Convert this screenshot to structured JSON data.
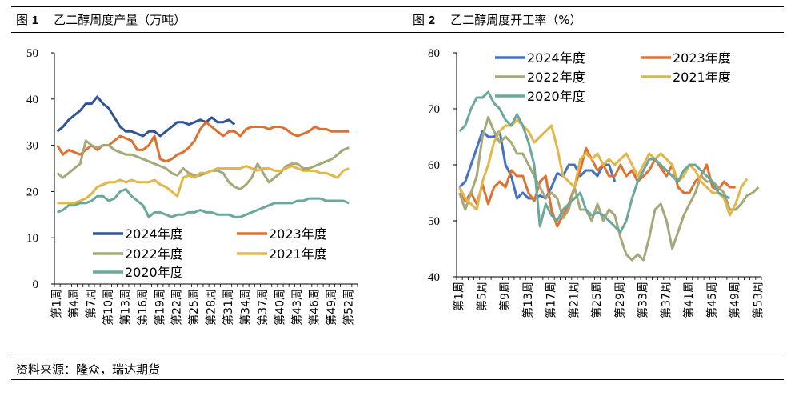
{
  "charts_header": {
    "fig1_label": "图",
    "fig1_num": "1",
    "fig1_title": "乙二醇周度产量（万吨）",
    "fig2_label": "图",
    "fig2_num": "2",
    "fig2_title": "乙二醇周度开工率（%）"
  },
  "source": "资料来源：隆众，瑞达期货",
  "colors": {
    "2024年度": "#2F5597",
    "2023年度": "#E07030",
    "2022年度": "#A5A878",
    "2021年度": "#E2B64A",
    "2020年度": "#6BA89C",
    "2024年度_right": "#4472C4"
  },
  "chart_data": [
    {
      "type": "line",
      "title": "乙二醇周度产量（万吨）",
      "ylim": [
        0,
        50
      ],
      "yticks": [
        0,
        10,
        20,
        30,
        40,
        50
      ],
      "xticks": [
        "第1周",
        "第4周",
        "第7周",
        "第10周",
        "第13周",
        "第16周",
        "第19周",
        "第22周",
        "第25周",
        "第28周",
        "第31周",
        "第34周",
        "第37周",
        "第40周",
        "第43周",
        "第46周",
        "第49周",
        "第52周"
      ],
      "legend": [
        "2024年度",
        "2023年度",
        "2022年度",
        "2021年度",
        "2020年度"
      ],
      "series": [
        {
          "name": "2024年度",
          "values": [
            33,
            34,
            35.5,
            36.5,
            37.5,
            39,
            39,
            40.5,
            39,
            38,
            36,
            34,
            33,
            33,
            32.5,
            32,
            33,
            33,
            32,
            33,
            34,
            35,
            35,
            34.5,
            35,
            35.5,
            35,
            36,
            35,
            35,
            35.5,
            34.5
          ]
        },
        {
          "name": "2023年度",
          "values": [
            30,
            28,
            29,
            28.5,
            28,
            29,
            30,
            29,
            30,
            30,
            31,
            32,
            31.5,
            31,
            29,
            29,
            30,
            32,
            27,
            26.5,
            27,
            28,
            28.5,
            29.5,
            31,
            33.5,
            35,
            34,
            33,
            32,
            33,
            33,
            32,
            33.5,
            34,
            34,
            34,
            33.5,
            34,
            34,
            33.5,
            32.5,
            32,
            32.5,
            33,
            34,
            33.5,
            33.5,
            33,
            33,
            33,
            33
          ]
        },
        {
          "name": "2022年度",
          "values": [
            24,
            23,
            24,
            25,
            26,
            31,
            30,
            29.5,
            30,
            30,
            29,
            28.5,
            28,
            28,
            27.5,
            27,
            26.5,
            26,
            25.5,
            25,
            24,
            23.5,
            25,
            24,
            23.5,
            23.5,
            24,
            24.5,
            24.5,
            24,
            22,
            21,
            20.5,
            21.5,
            23,
            26,
            24,
            22,
            23,
            24,
            25.5,
            26,
            26,
            25,
            25,
            25.5,
            26,
            26.5,
            27,
            28,
            29,
            29.5
          ]
        },
        {
          "name": "2021年度",
          "values": [
            17.5,
            17.5,
            17.5,
            17.5,
            18,
            18.5,
            19.5,
            21,
            21.5,
            22,
            22,
            22.5,
            22,
            22.5,
            22,
            22,
            22,
            22.5,
            21.5,
            21,
            20,
            19,
            23,
            23.5,
            23,
            24,
            24,
            24.5,
            25,
            25,
            25,
            25,
            25,
            25.5,
            25,
            24.5,
            25,
            25,
            24.5,
            24.5,
            25,
            25.5,
            25,
            24.5,
            24.5,
            24.5,
            24,
            24,
            23.5,
            23,
            24.5,
            25
          ]
        },
        {
          "name": "2020年度",
          "values": [
            15.5,
            16,
            17,
            17,
            17.5,
            17.5,
            18,
            19,
            19,
            18,
            18.5,
            20,
            20.5,
            19,
            18,
            17,
            14.5,
            15.5,
            15.5,
            15,
            14.5,
            15,
            15,
            15.5,
            15.5,
            16,
            15.5,
            15.5,
            15,
            15,
            15,
            14.5,
            14.5,
            15,
            15.5,
            16,
            16.5,
            17,
            17.5,
            17.5,
            17.5,
            17.5,
            18,
            18,
            18.5,
            18.5,
            18.5,
            18,
            18,
            18,
            18,
            17.5
          ]
        }
      ]
    },
    {
      "type": "line",
      "title": "乙二醇周度开工率（%）",
      "ylim": [
        40,
        80
      ],
      "yticks": [
        40,
        50,
        60,
        70,
        80
      ],
      "xticks": [
        "第1周",
        "第5周",
        "第9周",
        "第13周",
        "第17周",
        "第21周",
        "第25周",
        "第29周",
        "第33周",
        "第37周",
        "第41周",
        "第45周",
        "第49周",
        "第53周"
      ],
      "legend": [
        "2024年度",
        "2023年度",
        "2022年度",
        "2021年度",
        "2020年度"
      ],
      "series": [
        {
          "name": "2024年度",
          "values": [
            56,
            57,
            60,
            63,
            66,
            65,
            65,
            66,
            60,
            58,
            54,
            55,
            54,
            54,
            54.5,
            54,
            56,
            58.5,
            58,
            60,
            60,
            58,
            59,
            59,
            58,
            60,
            60,
            57
          ]
        },
        {
          "name": "2023年度",
          "values": [
            56,
            53.5,
            55,
            53,
            56.5,
            53,
            56,
            57,
            56,
            59,
            58,
            58,
            55,
            53.5,
            57,
            58,
            52,
            49,
            51,
            53,
            56,
            59,
            63,
            61,
            59,
            60,
            58,
            58,
            60,
            58,
            59,
            57,
            58,
            59,
            61,
            59.5,
            58,
            60,
            56,
            55,
            55,
            57,
            58,
            60,
            56,
            55.5,
            57,
            56,
            56
          ]
        },
        {
          "name": "2022年度",
          "values": [
            55,
            52,
            55,
            58,
            65,
            68.5,
            66,
            64,
            65,
            64,
            62,
            62,
            60,
            58,
            56,
            54,
            55,
            54,
            50.5,
            52,
            56,
            52,
            52,
            50,
            53,
            50,
            52,
            51,
            47,
            44,
            43,
            44,
            43,
            47,
            52,
            53,
            50,
            45,
            48,
            51,
            53,
            55,
            58,
            57,
            57,
            56,
            55,
            52,
            52,
            53,
            54.5,
            55,
            56
          ]
        },
        {
          "name": "2021年度",
          "values": [
            56,
            54,
            53,
            52,
            57,
            60,
            64,
            66,
            67,
            67,
            68,
            67,
            66,
            64,
            65,
            66,
            67,
            63,
            58,
            57,
            56,
            61,
            62,
            61,
            62,
            60,
            61,
            60,
            61,
            62,
            60,
            58,
            60,
            62,
            61,
            62,
            61,
            60,
            57,
            58,
            60,
            59,
            57,
            56,
            55,
            55,
            54,
            51,
            53,
            56,
            57.5
          ]
        },
        {
          "name": "2020年度",
          "values": [
            66,
            67,
            70,
            72,
            72,
            73,
            71,
            70,
            68,
            67,
            69,
            67,
            64,
            60,
            49,
            53,
            51,
            50,
            52,
            53,
            54,
            55,
            52,
            51,
            51.5,
            51,
            50,
            49,
            48,
            50,
            54,
            57,
            59,
            61,
            61,
            60,
            59,
            58,
            57,
            59,
            60,
            60,
            59,
            58,
            57,
            55,
            54.5,
            54
          ]
        }
      ]
    }
  ]
}
